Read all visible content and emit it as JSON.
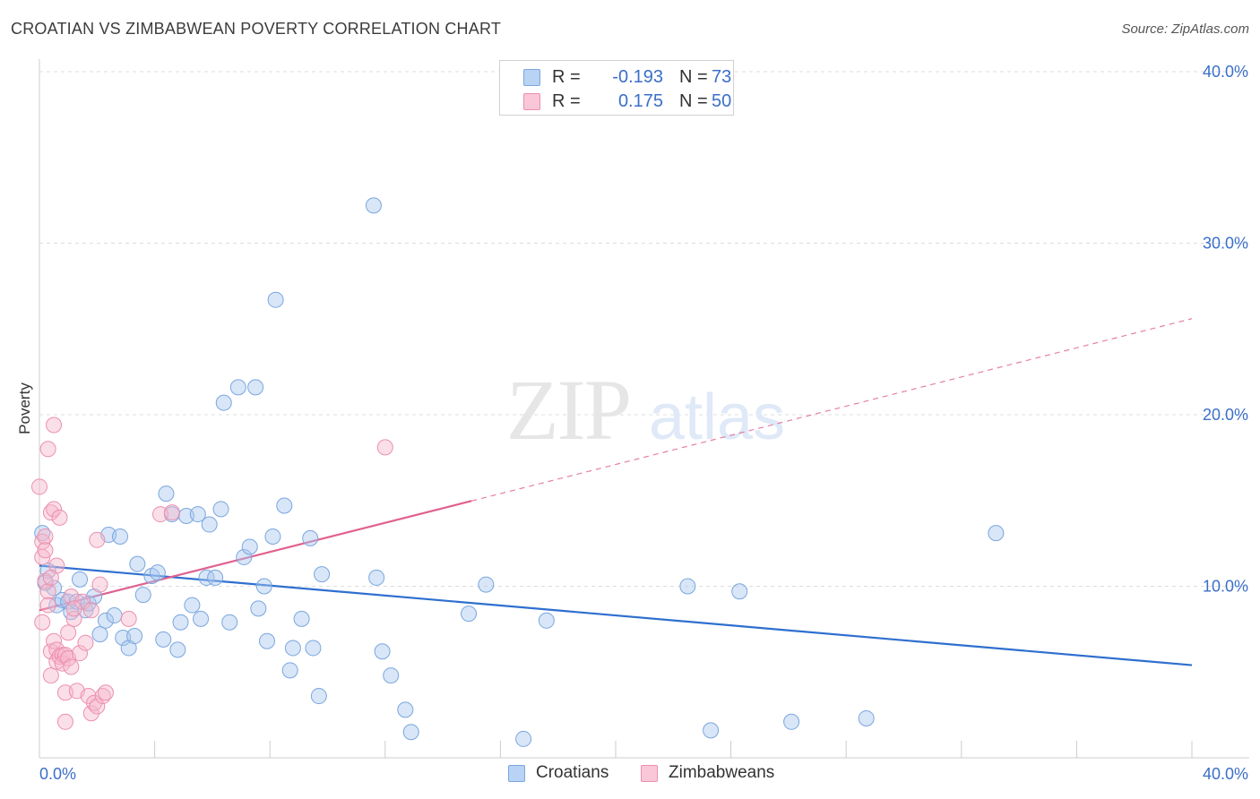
{
  "header": {
    "title": "CROATIAN VS ZIMBABWEAN POVERTY CORRELATION CHART",
    "source": "Source: ZipAtlas.com"
  },
  "watermark": {
    "zip": "ZIP",
    "atlas": "atlas"
  },
  "legend": {
    "rows": [
      {
        "r_label": "R =",
        "r_value": "-0.193",
        "n_label": "N =",
        "n_value": "73"
      },
      {
        "r_label": "R =",
        "r_value": "0.175",
        "n_label": "N =",
        "n_value": "50"
      }
    ]
  },
  "bottom_legend": {
    "croatians": "Croatians",
    "zimbabweans": "Zimbabweans"
  },
  "colors": {
    "croatians_fill": "#a8c8f0",
    "croatians_stroke": "#7aa6de",
    "croatians_line": "#2f6fcf",
    "zimbabweans_fill": "#f6b8cc",
    "zimbabweans_stroke": "#ec8fae",
    "zimbabweans_line": "#e0608f",
    "axis_label": "#3a6fc8",
    "grid": "#dddddd"
  },
  "chart_data": {
    "type": "scatter",
    "title": "CROATIAN VS ZIMBABWEAN POVERTY CORRELATION CHART",
    "ylabel": "Poverty",
    "xlabel": "",
    "xlim": [
      0,
      40
    ],
    "ylim": [
      0,
      40
    ],
    "x_tick_labels": [
      "0.0%",
      "40.0%"
    ],
    "y_tick_labels": [
      "10.0%",
      "20.0%",
      "30.0%",
      "40.0%"
    ],
    "y_ticks": [
      10,
      20,
      30,
      40
    ],
    "grid": true,
    "legend_position": "top-center",
    "series": [
      {
        "name": "Croatians",
        "r": -0.193,
        "n": 73,
        "trend": {
          "x0": 0,
          "y0": 11.2,
          "x1": 40,
          "y1": 5.4,
          "solid_until": 40
        },
        "points": [
          [
            0.1,
            13.1
          ],
          [
            0.3,
            10.9
          ],
          [
            0.5,
            9.9
          ],
          [
            0.6,
            8.9
          ],
          [
            0.8,
            9.2
          ],
          [
            1.0,
            9.1
          ],
          [
            1.1,
            8.5
          ],
          [
            1.3,
            9.1
          ],
          [
            1.4,
            10.4
          ],
          [
            1.6,
            8.6
          ],
          [
            1.7,
            9.0
          ],
          [
            1.9,
            9.4
          ],
          [
            2.1,
            7.2
          ],
          [
            2.3,
            8.0
          ],
          [
            2.4,
            13.0
          ],
          [
            2.6,
            8.3
          ],
          [
            2.8,
            12.9
          ],
          [
            2.9,
            7.0
          ],
          [
            3.1,
            6.4
          ],
          [
            3.3,
            7.1
          ],
          [
            3.4,
            11.3
          ],
          [
            3.6,
            9.5
          ],
          [
            3.9,
            10.6
          ],
          [
            4.1,
            10.8
          ],
          [
            4.3,
            6.9
          ],
          [
            4.4,
            15.4
          ],
          [
            4.6,
            14.2
          ],
          [
            4.8,
            6.3
          ],
          [
            4.9,
            7.9
          ],
          [
            5.1,
            14.1
          ],
          [
            5.3,
            8.9
          ],
          [
            5.5,
            14.2
          ],
          [
            5.6,
            8.1
          ],
          [
            5.8,
            10.5
          ],
          [
            5.9,
            13.6
          ],
          [
            6.1,
            10.5
          ],
          [
            6.3,
            14.5
          ],
          [
            6.4,
            20.7
          ],
          [
            6.6,
            7.9
          ],
          [
            6.9,
            21.6
          ],
          [
            7.1,
            11.7
          ],
          [
            7.3,
            12.3
          ],
          [
            7.5,
            21.6
          ],
          [
            7.6,
            8.7
          ],
          [
            7.8,
            10.0
          ],
          [
            7.9,
            6.8
          ],
          [
            8.1,
            12.9
          ],
          [
            8.2,
            26.7
          ],
          [
            8.5,
            14.7
          ],
          [
            8.7,
            5.1
          ],
          [
            8.8,
            6.4
          ],
          [
            9.1,
            8.1
          ],
          [
            9.4,
            12.8
          ],
          [
            9.5,
            6.4
          ],
          [
            9.7,
            3.6
          ],
          [
            9.8,
            10.7
          ],
          [
            11.6,
            32.2
          ],
          [
            11.7,
            10.5
          ],
          [
            11.9,
            6.2
          ],
          [
            12.2,
            4.8
          ],
          [
            12.7,
            2.8
          ],
          [
            12.9,
            1.5
          ],
          [
            14.9,
            8.4
          ],
          [
            15.5,
            10.1
          ],
          [
            16.8,
            1.1
          ],
          [
            17.6,
            8.0
          ],
          [
            22.5,
            10.0
          ],
          [
            23.3,
            1.6
          ],
          [
            24.3,
            9.7
          ],
          [
            26.1,
            2.1
          ],
          [
            28.7,
            2.3
          ],
          [
            33.2,
            13.1
          ],
          [
            0.2,
            10.2
          ]
        ]
      },
      {
        "name": "Zimbabweans",
        "r": 0.175,
        "n": 50,
        "trend": {
          "x0": 0,
          "y0": 8.6,
          "x1": 40,
          "y1": 25.6,
          "solid_until": 15
        },
        "points": [
          [
            0.0,
            15.8
          ],
          [
            0.1,
            12.6
          ],
          [
            0.1,
            11.7
          ],
          [
            0.2,
            12.9
          ],
          [
            0.2,
            12.1
          ],
          [
            0.2,
            10.3
          ],
          [
            0.3,
            9.7
          ],
          [
            0.3,
            18.0
          ],
          [
            0.4,
            6.2
          ],
          [
            0.4,
            4.8
          ],
          [
            0.4,
            14.3
          ],
          [
            0.5,
            6.8
          ],
          [
            0.5,
            19.4
          ],
          [
            0.5,
            14.5
          ],
          [
            0.6,
            6.3
          ],
          [
            0.6,
            5.6
          ],
          [
            0.7,
            14.0
          ],
          [
            0.7,
            5.9
          ],
          [
            0.8,
            6.0
          ],
          [
            0.8,
            5.5
          ],
          [
            0.9,
            6.0
          ],
          [
            0.9,
            2.1
          ],
          [
            0.9,
            3.8
          ],
          [
            1.0,
            7.3
          ],
          [
            1.0,
            5.8
          ],
          [
            1.1,
            5.3
          ],
          [
            1.1,
            9.4
          ],
          [
            1.2,
            8.1
          ],
          [
            1.3,
            3.9
          ],
          [
            1.4,
            6.1
          ],
          [
            1.5,
            9.1
          ],
          [
            1.6,
            6.7
          ],
          [
            1.7,
            3.6
          ],
          [
            1.8,
            8.6
          ],
          [
            1.8,
            2.6
          ],
          [
            1.9,
            3.2
          ],
          [
            2.0,
            12.7
          ],
          [
            2.0,
            3.0
          ],
          [
            2.1,
            10.1
          ],
          [
            2.2,
            3.6
          ],
          [
            2.3,
            3.8
          ],
          [
            3.1,
            8.1
          ],
          [
            4.2,
            14.2
          ],
          [
            4.6,
            14.3
          ],
          [
            12.0,
            18.1
          ],
          [
            0.1,
            7.9
          ],
          [
            0.3,
            8.9
          ],
          [
            0.6,
            11.2
          ],
          [
            1.2,
            8.7
          ],
          [
            0.4,
            10.5
          ]
        ]
      }
    ]
  }
}
